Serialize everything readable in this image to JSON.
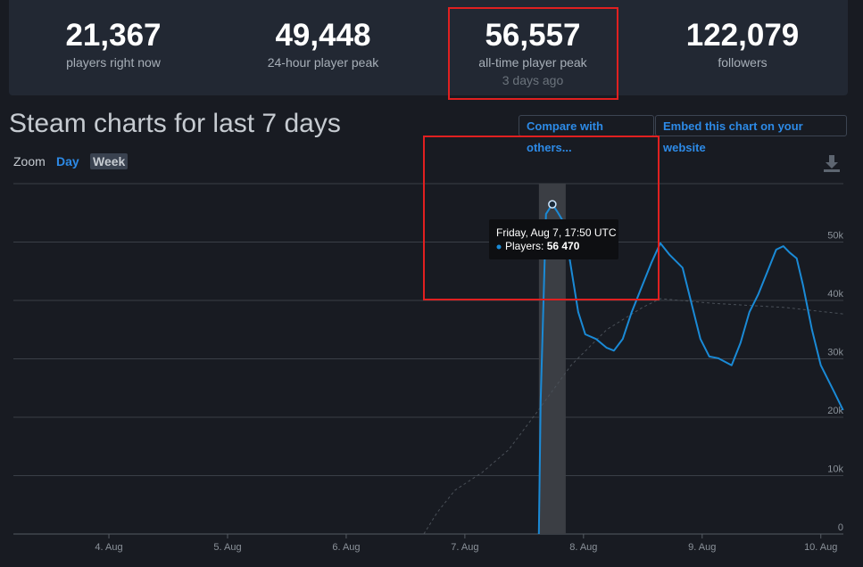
{
  "stats": [
    {
      "value": "21,367",
      "label": "players right now"
    },
    {
      "value": "49,448",
      "label": "24-hour player peak"
    },
    {
      "value": "56,557",
      "label": "all-time player peak",
      "note": "3 days ago"
    },
    {
      "value": "122,079",
      "label": "followers"
    }
  ],
  "buttons": {
    "compare": "Compare with others...",
    "embed": "Embed this chart on your website"
  },
  "zoom": {
    "label": "Zoom",
    "options": [
      "Day",
      "Week"
    ]
  },
  "chart_data": {
    "type": "line",
    "title": "Steam charts for last 7 days",
    "xlim": [
      3.195,
      10.19
    ],
    "xticks": [
      {
        "value": 4,
        "label": "4. Aug"
      },
      {
        "value": 5,
        "label": "5. Aug"
      },
      {
        "value": 6,
        "label": "6. Aug"
      },
      {
        "value": 7,
        "label": "7. Aug"
      },
      {
        "value": 8,
        "label": "8. Aug"
      },
      {
        "value": 9,
        "label": "9. Aug"
      },
      {
        "value": 10,
        "label": "10. Aug"
      }
    ],
    "ylim": [
      0,
      60000
    ],
    "yticks": [
      0,
      {
        "value": 10000,
        "label": "10k"
      },
      {
        "value": 20000,
        "label": "20k"
      },
      {
        "value": 30000,
        "label": "30k"
      },
      {
        "value": 40000,
        "label": "40k"
      },
      {
        "value": 50000,
        "label": "50k"
      }
    ],
    "grid": true,
    "series": [
      {
        "name": "Players",
        "color": "#1a8ad6",
        "x": [
          7.624,
          7.639,
          7.684,
          7.737,
          7.782,
          7.835,
          7.895,
          7.955,
          8.015,
          8.105,
          8.195,
          8.256,
          8.331,
          8.406,
          8.496,
          8.571,
          8.647,
          8.722,
          8.835,
          8.91,
          8.985,
          9.06,
          9.135,
          9.248,
          9.323,
          9.398,
          9.474,
          9.549,
          9.624,
          9.684,
          9.737,
          9.797,
          9.85,
          9.925,
          10.0,
          10.113,
          10.188
        ],
        "values": [
          0,
          22700,
          54800,
          56470,
          55100,
          53300,
          45600,
          38000,
          34200,
          33400,
          31900,
          31400,
          33400,
          38000,
          42600,
          46400,
          49800,
          47900,
          45600,
          39500,
          33400,
          30400,
          30100,
          28900,
          32700,
          38000,
          41100,
          44900,
          48700,
          49300,
          48200,
          47200,
          42600,
          35000,
          28900,
          24300,
          21200
        ]
      },
      {
        "color": "#4a5058",
        "dashed": true,
        "x": [
          6.654,
          6.767,
          6.917,
          7.143,
          7.368,
          7.594,
          7.895,
          8.195,
          8.496,
          8.647,
          9.098,
          9.699,
          10.188
        ],
        "values": [
          0,
          3700,
          7500,
          10500,
          14400,
          20500,
          28900,
          35000,
          38800,
          40300,
          39500,
          38800,
          37700
        ]
      }
    ],
    "highlight": {
      "x": [
        7.624,
        7.85
      ]
    },
    "tooltip": {
      "date": "Friday, Aug 7, 17:50 UTC",
      "series": "Players:",
      "x": 7.737,
      "value": 56470,
      "value_label": "56 470"
    }
  }
}
